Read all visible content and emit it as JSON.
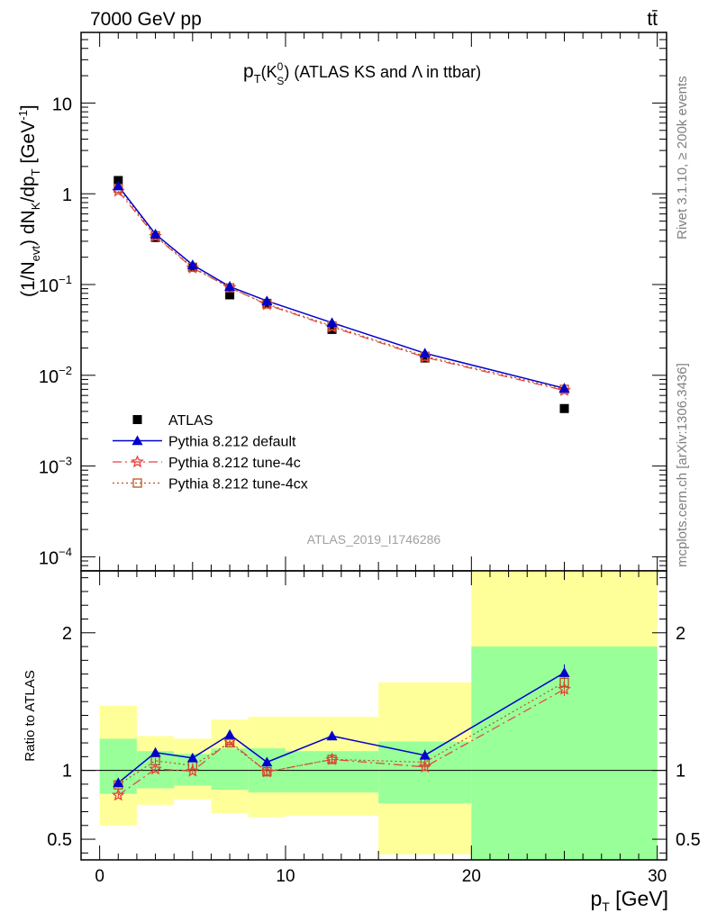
{
  "header": {
    "energy_label": "7000 GeV pp",
    "process_label": "tt̄"
  },
  "side_notes": {
    "rivet": "Rivet 3.1.10, ≥ 200k events",
    "mcplots": "mcplots.cern.ch [arXiv:1306.3436]"
  },
  "colors": {
    "atlas": "#000000",
    "default": "#0000cc",
    "tune4c": "#e8403a",
    "tune4cx": "#b8541e",
    "band_inner": "#99ff99",
    "band_outer": "#ffff99"
  },
  "chart_data": [
    {
      "type": "scatter",
      "panel": "main",
      "title": {
        "base": "p",
        "sub": "T",
        "paren_open": "(K",
        "paren_sup": "0",
        "paren_sub": "S",
        "paren_close": ")",
        "rest": " (ATLAS KS and Λ in ttbar)"
      },
      "ylabel": "(1/N_evt) dN_K/dp_T [GeV^-1]",
      "ylabel_parts": {
        "p1": "(1/N",
        "p1_sub": "evt",
        "p2": ") dN",
        "p2_sub": "K",
        "p3": "/dp",
        "p3_sub": "T",
        "p4": " [GeV",
        "p4_sup": "-1",
        "p5": "]"
      },
      "analysis_id": "ATLAS_2019_I1746286",
      "yscale": "log",
      "xlim": [
        -1,
        30.5
      ],
      "ylim": [
        7e-05,
        60
      ],
      "ytick_labels": [
        {
          "value": 10,
          "label": "10",
          "sup": ""
        },
        {
          "value": 1,
          "label": "1",
          "sup": ""
        },
        {
          "value": 0.1,
          "label": "10",
          "sup": "−1"
        },
        {
          "value": 0.01,
          "label": "10",
          "sup": "−2"
        },
        {
          "value": 0.001,
          "label": "10",
          "sup": "−3"
        },
        {
          "value": 0.0001,
          "label": "10",
          "sup": "−4"
        }
      ],
      "x": [
        1,
        3,
        5,
        7,
        9,
        12.5,
        17.5,
        25
      ],
      "series": [
        {
          "name": "ATLAS",
          "key": "atlas",
          "values": [
            1.4,
            0.33,
            0.155,
            0.077,
            0.062,
            0.032,
            0.0155,
            0.0043
          ]
        },
        {
          "name": "Pythia 8.212 default",
          "key": "default",
          "values": [
            1.22,
            0.36,
            0.165,
            0.095,
            0.066,
            0.038,
            0.0175,
            0.0072
          ]
        },
        {
          "name": "Pythia 8.212 tune-4c",
          "key": "tune4c",
          "values": [
            1.07,
            0.34,
            0.152,
            0.093,
            0.06,
            0.034,
            0.0158,
            0.0068
          ]
        },
        {
          "name": "Pythia 8.212 tune-4cx",
          "key": "tune4cx",
          "values": [
            1.15,
            0.345,
            0.155,
            0.092,
            0.061,
            0.035,
            0.0162,
            0.007
          ]
        }
      ],
      "legend_placement": "lower-left"
    },
    {
      "type": "line",
      "panel": "ratio",
      "ylabel": "Ratio to ATLAS",
      "xlabel": "p_T [GeV]",
      "xlabel_parts": {
        "base": "p",
        "sub": "T",
        "rest": " [GeV]"
      },
      "xlim": [
        -1,
        30.5
      ],
      "ylim": [
        0.35,
        2.45
      ],
      "xtick_labels": [
        0,
        10,
        20,
        30
      ],
      "ytick_labels": [
        {
          "value": 0.5,
          "label": "0.5"
        },
        {
          "value": 1,
          "label": "1"
        },
        {
          "value": 2,
          "label": "2"
        }
      ],
      "bins": [
        [
          0,
          2
        ],
        [
          2,
          4
        ],
        [
          4,
          6
        ],
        [
          6,
          8
        ],
        [
          8,
          10
        ],
        [
          10,
          15
        ],
        [
          15,
          20
        ],
        [
          20,
          30
        ]
      ],
      "band_inner": [
        [
          0.83,
          1.23
        ],
        [
          0.87,
          1.14
        ],
        [
          0.89,
          1.12
        ],
        [
          0.86,
          1.16
        ],
        [
          0.84,
          1.16
        ],
        [
          0.84,
          1.14
        ],
        [
          0.76,
          1.21
        ],
        [
          0.35,
          1.9
        ]
      ],
      "band_outer": [
        [
          0.6,
          1.47
        ],
        [
          0.75,
          1.25
        ],
        [
          0.79,
          1.23
        ],
        [
          0.69,
          1.37
        ],
        [
          0.66,
          1.39
        ],
        [
          0.67,
          1.39
        ],
        [
          0.39,
          1.64
        ],
        [
          0.35,
          2.45
        ]
      ],
      "x": [
        1,
        3,
        5,
        7,
        9,
        12.5,
        17.5,
        25
      ],
      "series": [
        {
          "name": "Pythia 8.212 default",
          "key": "default",
          "values": [
            0.91,
            1.13,
            1.09,
            1.26,
            1.06,
            1.25,
            1.11,
            1.71
          ],
          "errors": [
            0.02,
            0.02,
            0.02,
            0.03,
            0.03,
            0.03,
            0.04,
            0.06
          ]
        },
        {
          "name": "Pythia 8.212 tune-4c",
          "key": "tune4c",
          "values": [
            0.82,
            1.01,
            0.995,
            1.21,
            0.99,
            1.08,
            1.025,
            1.59
          ],
          "errors": [
            0.02,
            0.02,
            0.02,
            0.03,
            0.02,
            0.03,
            0.03,
            0.05
          ]
        },
        {
          "name": "Pythia 8.212 tune-4cx",
          "key": "tune4cx",
          "values": [
            0.895,
            1.07,
            1.035,
            1.2,
            0.99,
            1.08,
            1.06,
            1.64
          ],
          "errors": [
            0.02,
            0.02,
            0.02,
            0.03,
            0.02,
            0.03,
            0.03,
            0.05
          ]
        }
      ]
    }
  ]
}
